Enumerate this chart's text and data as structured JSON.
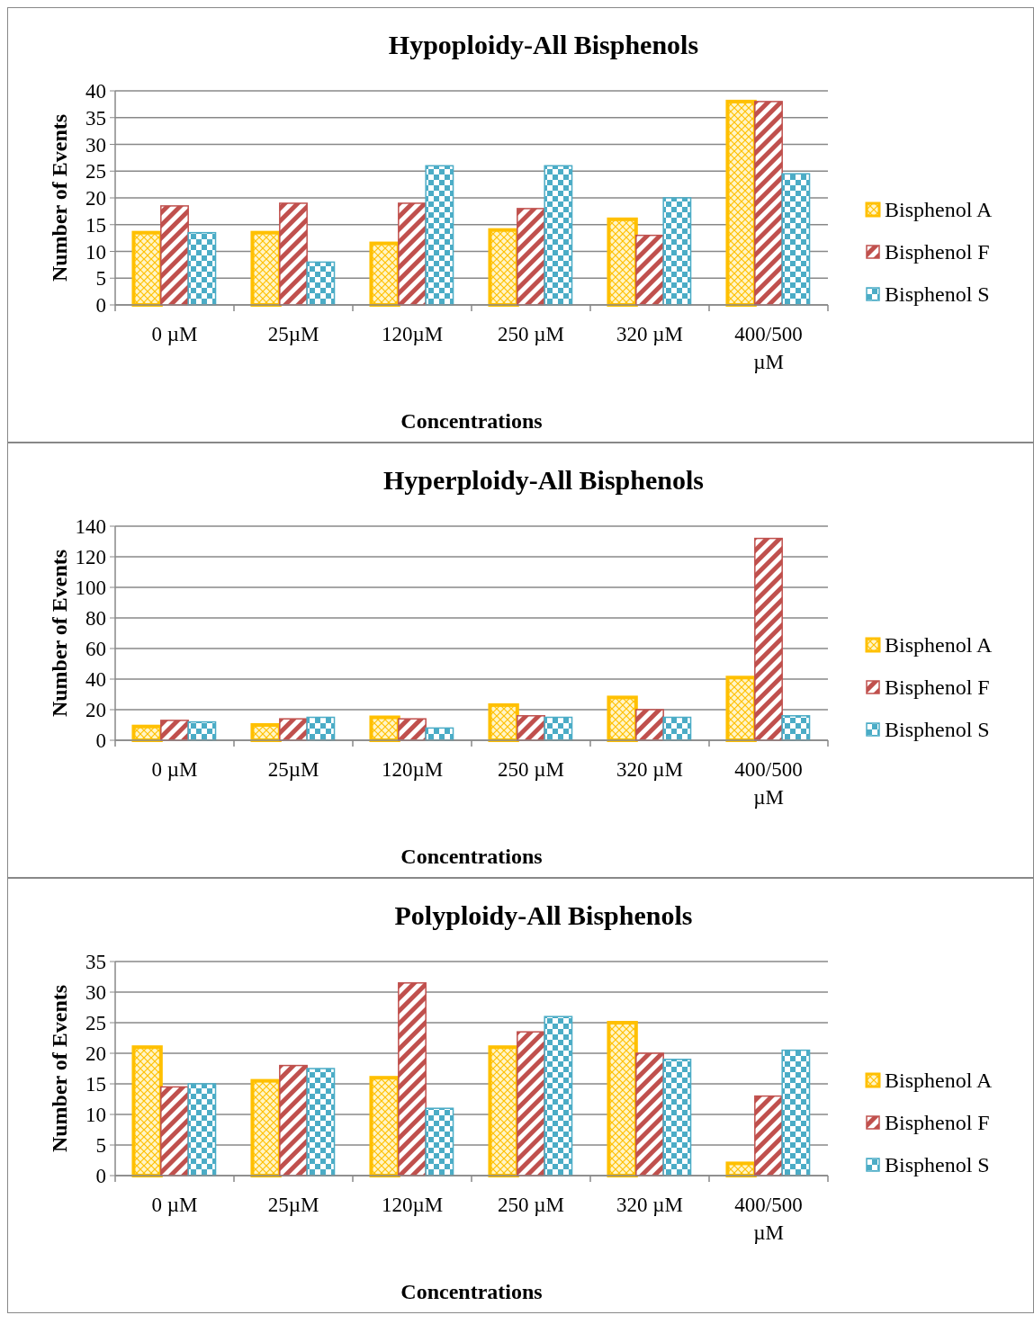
{
  "chart_data": [
    {
      "type": "bar",
      "title": "Hypoploidy-All Bisphenols",
      "xlabel": "Concentrations",
      "ylabel": "Number of Events",
      "categories": [
        "0 µM",
        "25µM",
        "120µM",
        "250 µM",
        "320 µM",
        "400/500 µM"
      ],
      "series": [
        {
          "name": "Bisphenol A",
          "color": "#ffc000",
          "values": [
            13.5,
            13.5,
            11.5,
            14,
            16,
            38
          ]
        },
        {
          "name": "Bisphenol F",
          "color": "#c0504d",
          "values": [
            18.5,
            19,
            19,
            18,
            13,
            38
          ]
        },
        {
          "name": "Bisphenol S",
          "color": "#4bacc6",
          "values": [
            13.5,
            8,
            26,
            26,
            20,
            24.5
          ]
        }
      ],
      "ylim": [
        0,
        40
      ],
      "yticks": [
        0,
        5,
        10,
        15,
        20,
        25,
        30,
        35,
        40
      ],
      "grid": "y",
      "legend": "right"
    },
    {
      "type": "bar",
      "title": "Hyperploidy-All Bisphenols",
      "xlabel": "Concentrations",
      "ylabel": "Number of Events",
      "categories": [
        "0 µM",
        "25µM",
        "120µM",
        "250 µM",
        "320 µM",
        "400/500 µM"
      ],
      "series": [
        {
          "name": "Bisphenol A",
          "color": "#ffc000",
          "values": [
            9,
            10,
            15,
            23,
            28,
            41
          ]
        },
        {
          "name": "Bisphenol F",
          "color": "#c0504d",
          "values": [
            13,
            14,
            14,
            16,
            20,
            132
          ]
        },
        {
          "name": "Bisphenol S",
          "color": "#4bacc6",
          "values": [
            12,
            15,
            8,
            15,
            15,
            16
          ]
        }
      ],
      "ylim": [
        0,
        140
      ],
      "yticks": [
        0,
        20,
        40,
        60,
        80,
        100,
        120,
        140
      ],
      "grid": "y",
      "legend": "right"
    },
    {
      "type": "bar",
      "title": "Polyploidy-All Bisphenols",
      "xlabel": "Concentrations",
      "ylabel": "Number of Events",
      "categories": [
        "0 µM",
        "25µM",
        "120µM",
        "250 µM",
        "320 µM",
        "400/500 µM"
      ],
      "series": [
        {
          "name": "Bisphenol A",
          "color": "#ffc000",
          "values": [
            21,
            15.5,
            16,
            21,
            25,
            2
          ]
        },
        {
          "name": "Bisphenol F",
          "color": "#c0504d",
          "values": [
            14.5,
            18,
            31.5,
            23.5,
            20,
            13
          ]
        },
        {
          "name": "Bisphenol S",
          "color": "#4bacc6",
          "values": [
            15,
            17.5,
            11,
            26,
            19,
            20.5
          ]
        }
      ],
      "ylim": [
        0,
        35
      ],
      "yticks": [
        0,
        5,
        10,
        15,
        20,
        25,
        30,
        35
      ],
      "grid": "y",
      "legend": "right"
    }
  ]
}
